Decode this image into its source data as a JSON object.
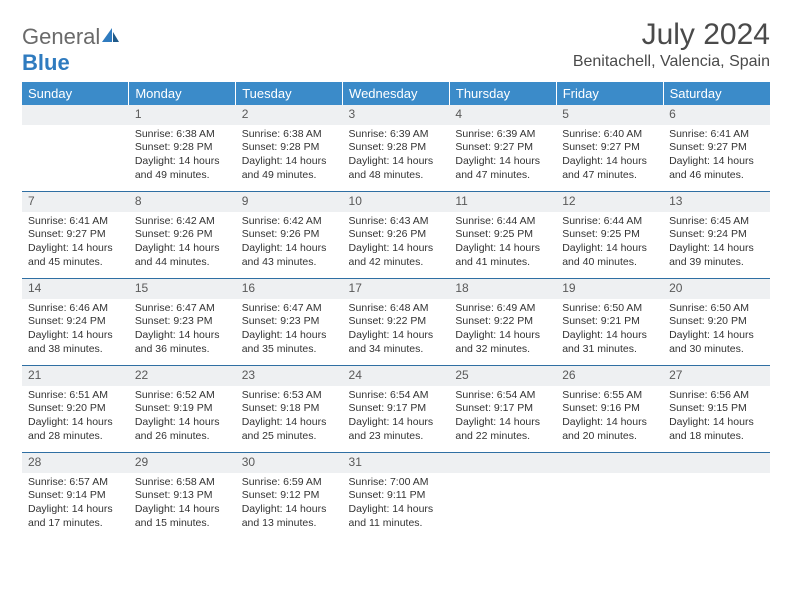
{
  "brand": {
    "part1": "General",
    "part2": "Blue"
  },
  "title": "July 2024",
  "location": "Benitachell, Valencia, Spain",
  "colors": {
    "header_bg": "#3b8bc9",
    "header_text": "#ffffff",
    "daynum_bg": "#eef0f2",
    "daynum_text": "#595959",
    "row_divider": "#2f6fa3",
    "page_text": "#333333",
    "title_text": "#4a4a4a",
    "logo_gray": "#6a6a6a",
    "logo_blue": "#2f7bbf"
  },
  "weekdays": [
    "Sunday",
    "Monday",
    "Tuesday",
    "Wednesday",
    "Thursday",
    "Friday",
    "Saturday"
  ],
  "weeks": [
    [
      {
        "n": "",
        "lines": []
      },
      {
        "n": "1",
        "lines": [
          "Sunrise: 6:38 AM",
          "Sunset: 9:28 PM",
          "Daylight: 14 hours",
          "and 49 minutes."
        ]
      },
      {
        "n": "2",
        "lines": [
          "Sunrise: 6:38 AM",
          "Sunset: 9:28 PM",
          "Daylight: 14 hours",
          "and 49 minutes."
        ]
      },
      {
        "n": "3",
        "lines": [
          "Sunrise: 6:39 AM",
          "Sunset: 9:28 PM",
          "Daylight: 14 hours",
          "and 48 minutes."
        ]
      },
      {
        "n": "4",
        "lines": [
          "Sunrise: 6:39 AM",
          "Sunset: 9:27 PM",
          "Daylight: 14 hours",
          "and 47 minutes."
        ]
      },
      {
        "n": "5",
        "lines": [
          "Sunrise: 6:40 AM",
          "Sunset: 9:27 PM",
          "Daylight: 14 hours",
          "and 47 minutes."
        ]
      },
      {
        "n": "6",
        "lines": [
          "Sunrise: 6:41 AM",
          "Sunset: 9:27 PM",
          "Daylight: 14 hours",
          "and 46 minutes."
        ]
      }
    ],
    [
      {
        "n": "7",
        "lines": [
          "Sunrise: 6:41 AM",
          "Sunset: 9:27 PM",
          "Daylight: 14 hours",
          "and 45 minutes."
        ]
      },
      {
        "n": "8",
        "lines": [
          "Sunrise: 6:42 AM",
          "Sunset: 9:26 PM",
          "Daylight: 14 hours",
          "and 44 minutes."
        ]
      },
      {
        "n": "9",
        "lines": [
          "Sunrise: 6:42 AM",
          "Sunset: 9:26 PM",
          "Daylight: 14 hours",
          "and 43 minutes."
        ]
      },
      {
        "n": "10",
        "lines": [
          "Sunrise: 6:43 AM",
          "Sunset: 9:26 PM",
          "Daylight: 14 hours",
          "and 42 minutes."
        ]
      },
      {
        "n": "11",
        "lines": [
          "Sunrise: 6:44 AM",
          "Sunset: 9:25 PM",
          "Daylight: 14 hours",
          "and 41 minutes."
        ]
      },
      {
        "n": "12",
        "lines": [
          "Sunrise: 6:44 AM",
          "Sunset: 9:25 PM",
          "Daylight: 14 hours",
          "and 40 minutes."
        ]
      },
      {
        "n": "13",
        "lines": [
          "Sunrise: 6:45 AM",
          "Sunset: 9:24 PM",
          "Daylight: 14 hours",
          "and 39 minutes."
        ]
      }
    ],
    [
      {
        "n": "14",
        "lines": [
          "Sunrise: 6:46 AM",
          "Sunset: 9:24 PM",
          "Daylight: 14 hours",
          "and 38 minutes."
        ]
      },
      {
        "n": "15",
        "lines": [
          "Sunrise: 6:47 AM",
          "Sunset: 9:23 PM",
          "Daylight: 14 hours",
          "and 36 minutes."
        ]
      },
      {
        "n": "16",
        "lines": [
          "Sunrise: 6:47 AM",
          "Sunset: 9:23 PM",
          "Daylight: 14 hours",
          "and 35 minutes."
        ]
      },
      {
        "n": "17",
        "lines": [
          "Sunrise: 6:48 AM",
          "Sunset: 9:22 PM",
          "Daylight: 14 hours",
          "and 34 minutes."
        ]
      },
      {
        "n": "18",
        "lines": [
          "Sunrise: 6:49 AM",
          "Sunset: 9:22 PM",
          "Daylight: 14 hours",
          "and 32 minutes."
        ]
      },
      {
        "n": "19",
        "lines": [
          "Sunrise: 6:50 AM",
          "Sunset: 9:21 PM",
          "Daylight: 14 hours",
          "and 31 minutes."
        ]
      },
      {
        "n": "20",
        "lines": [
          "Sunrise: 6:50 AM",
          "Sunset: 9:20 PM",
          "Daylight: 14 hours",
          "and 30 minutes."
        ]
      }
    ],
    [
      {
        "n": "21",
        "lines": [
          "Sunrise: 6:51 AM",
          "Sunset: 9:20 PM",
          "Daylight: 14 hours",
          "and 28 minutes."
        ]
      },
      {
        "n": "22",
        "lines": [
          "Sunrise: 6:52 AM",
          "Sunset: 9:19 PM",
          "Daylight: 14 hours",
          "and 26 minutes."
        ]
      },
      {
        "n": "23",
        "lines": [
          "Sunrise: 6:53 AM",
          "Sunset: 9:18 PM",
          "Daylight: 14 hours",
          "and 25 minutes."
        ]
      },
      {
        "n": "24",
        "lines": [
          "Sunrise: 6:54 AM",
          "Sunset: 9:17 PM",
          "Daylight: 14 hours",
          "and 23 minutes."
        ]
      },
      {
        "n": "25",
        "lines": [
          "Sunrise: 6:54 AM",
          "Sunset: 9:17 PM",
          "Daylight: 14 hours",
          "and 22 minutes."
        ]
      },
      {
        "n": "26",
        "lines": [
          "Sunrise: 6:55 AM",
          "Sunset: 9:16 PM",
          "Daylight: 14 hours",
          "and 20 minutes."
        ]
      },
      {
        "n": "27",
        "lines": [
          "Sunrise: 6:56 AM",
          "Sunset: 9:15 PM",
          "Daylight: 14 hours",
          "and 18 minutes."
        ]
      }
    ],
    [
      {
        "n": "28",
        "lines": [
          "Sunrise: 6:57 AM",
          "Sunset: 9:14 PM",
          "Daylight: 14 hours",
          "and 17 minutes."
        ]
      },
      {
        "n": "29",
        "lines": [
          "Sunrise: 6:58 AM",
          "Sunset: 9:13 PM",
          "Daylight: 14 hours",
          "and 15 minutes."
        ]
      },
      {
        "n": "30",
        "lines": [
          "Sunrise: 6:59 AM",
          "Sunset: 9:12 PM",
          "Daylight: 14 hours",
          "and 13 minutes."
        ]
      },
      {
        "n": "31",
        "lines": [
          "Sunrise: 7:00 AM",
          "Sunset: 9:11 PM",
          "Daylight: 14 hours",
          "and 11 minutes."
        ]
      },
      {
        "n": "",
        "lines": []
      },
      {
        "n": "",
        "lines": []
      },
      {
        "n": "",
        "lines": []
      }
    ]
  ]
}
